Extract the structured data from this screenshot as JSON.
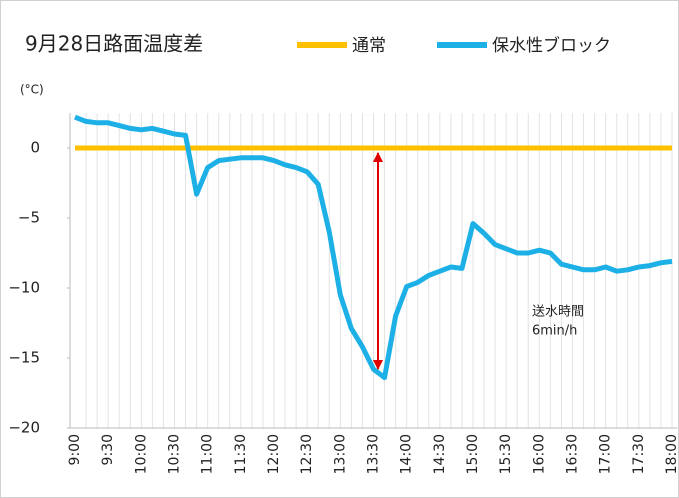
{
  "chart_data": {
    "type": "line",
    "title": "9月28日路面温度差",
    "ylabel": "(°C)",
    "annotation": [
      "送水時間",
      "6min/h"
    ],
    "categories": [
      "9:00",
      null,
      null,
      "9:30",
      null,
      null,
      "10:00",
      null,
      null,
      "10:30",
      null,
      null,
      "11:00",
      null,
      null,
      "11:30",
      null,
      null,
      "12:00",
      null,
      null,
      "12:30",
      null,
      null,
      "13:00",
      null,
      null,
      "13:30",
      null,
      null,
      "14:00",
      null,
      null,
      "14:30",
      null,
      null,
      "15:00",
      null,
      null,
      "15:30",
      null,
      null,
      "16:00",
      null,
      null,
      "16:30",
      null,
      null,
      "17:00",
      null,
      null,
      "17:30",
      null,
      null,
      "18:00"
    ],
    "series": [
      {
        "name": "通常",
        "color": "#FFC000",
        "values": [
          0,
          0,
          0,
          0,
          0,
          0,
          0,
          0,
          0,
          0,
          0,
          0,
          0,
          0,
          0,
          0,
          0,
          0,
          0,
          0,
          0,
          0,
          0,
          0,
          0,
          0,
          0,
          0,
          0,
          0,
          0,
          0,
          0,
          0,
          0,
          0,
          0,
          0,
          0,
          0,
          0,
          0,
          0,
          0,
          0,
          0,
          0,
          0,
          0,
          0,
          0,
          0,
          0,
          0,
          0
        ]
      },
      {
        "name": "保水性ブロック",
        "color": "#1CB0E6",
        "values": [
          2.2,
          1.9,
          1.8,
          1.8,
          1.6,
          1.4,
          1.3,
          1.4,
          1.2,
          1.0,
          0.9,
          -3.3,
          -1.4,
          -0.9,
          -0.8,
          -0.7,
          -0.7,
          -0.7,
          -0.9,
          -1.2,
          -1.4,
          -1.7,
          -2.6,
          -6.0,
          -10.5,
          -12.9,
          -14.2,
          -15.8,
          -16.4,
          -12.0,
          -9.9,
          -9.6,
          -9.1,
          -8.8,
          -8.5,
          -8.6,
          -5.4,
          -6.1,
          -6.9,
          -7.2,
          -7.5,
          -7.5,
          -7.3,
          -7.5,
          -8.3,
          -8.5,
          -8.7,
          -8.7,
          -8.5,
          -8.8,
          -8.7,
          -8.5,
          -8.4,
          -8.2,
          -8.1
        ]
      }
    ],
    "ylim": [
      -20,
      2.5
    ],
    "yticks": [
      0,
      {
        "value": -5,
        "label": "−5"
      },
      {
        "value": -10,
        "label": "−10"
      },
      {
        "value": -15,
        "label": "−15"
      },
      {
        "value": -20,
        "label": "−20"
      }
    ],
    "grid": "x"
  }
}
